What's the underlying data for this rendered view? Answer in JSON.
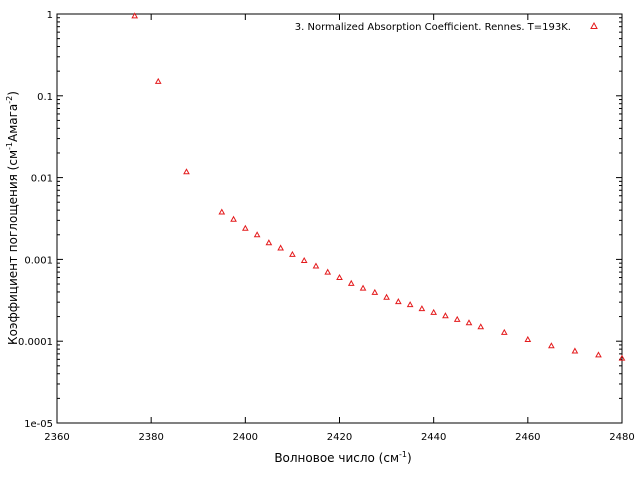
{
  "chart_data": {
    "type": "scatter",
    "xlabel": "Волновое число (см",
    "xlabel_sup": "-1",
    "xlabel_tail": ")",
    "ylabel": "Коэффициент поглощения (см",
    "ylabel_sup1": "-1",
    "ylabel_mid": "Амага",
    "ylabel_sup2": "-2",
    "ylabel_tail": ")",
    "xlim": [
      2360,
      2480
    ],
    "ylim": [
      1e-05,
      1
    ],
    "yscale": "log",
    "grid": false,
    "legend_position": "top-right",
    "x_ticks": [
      2360,
      2380,
      2400,
      2420,
      2440,
      2460,
      2480
    ],
    "x_tick_labels": [
      "2360",
      "2380",
      "2400",
      "2420",
      "2440",
      "2460",
      "2480"
    ],
    "y_ticks": [
      1e-05,
      0.0001,
      0.001,
      0.01,
      0.1,
      1
    ],
    "y_tick_labels": [
      "1e-05",
      "0.0001",
      "0.001",
      "0.01",
      "0.1",
      "1"
    ],
    "series": [
      {
        "name": "3. Normalized Absorption Coefficient. Rennes. T=193K.",
        "color": "#e41a1c",
        "marker": "triangle",
        "x": [
          2376.5,
          2381.5,
          2387.5,
          2395,
          2397.5,
          2400,
          2402.5,
          2405,
          2407.5,
          2410,
          2412.5,
          2415,
          2417.5,
          2420,
          2422.5,
          2425,
          2427.5,
          2430,
          2432.5,
          2435,
          2437.5,
          2440,
          2442.5,
          2445,
          2447.5,
          2450,
          2455,
          2460,
          2465,
          2470,
          2475,
          2480
        ],
        "y": [
          0.95,
          0.15,
          0.0118,
          0.0038,
          0.0031,
          0.0024,
          0.002,
          0.0016,
          0.00138,
          0.00115,
          0.00097,
          0.00083,
          0.0007,
          0.0006,
          0.00051,
          0.000445,
          0.000395,
          0.000345,
          0.000305,
          0.00028,
          0.00025,
          0.000225,
          0.000205,
          0.000185,
          0.000168,
          0.00015,
          0.000128,
          0.000105,
          8.8e-05,
          7.6e-05,
          6.8e-05,
          6.2e-05
        ]
      }
    ]
  }
}
